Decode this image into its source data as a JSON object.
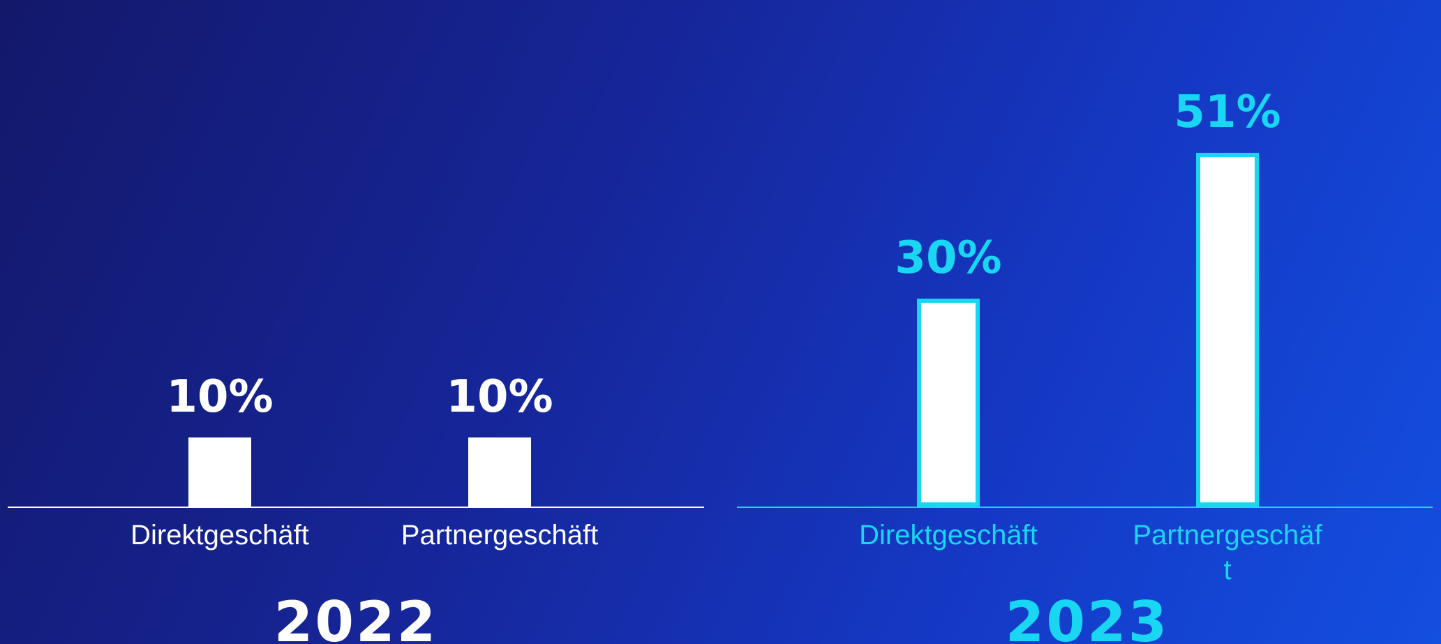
{
  "chart_data": [
    {
      "type": "bar",
      "title": "2022",
      "categories": [
        "Direktgeschäft",
        "Partnergeschäft"
      ],
      "values": [
        10,
        10
      ],
      "value_labels": [
        "10%",
        "10%"
      ],
      "color": "#ffffff",
      "label_color": "#ffffff"
    },
    {
      "type": "bar",
      "title": "2023",
      "categories": [
        "Direktgeschäft",
        "Partnergeschäft"
      ],
      "values": [
        30,
        51
      ],
      "value_labels": [
        "30%",
        "51%"
      ],
      "color": "#ffffff",
      "border_color": "#19d6f2",
      "label_color": "#19d6f2"
    }
  ]
}
